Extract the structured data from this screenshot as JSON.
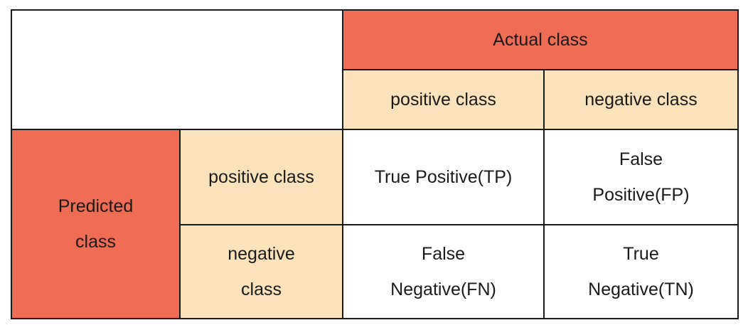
{
  "colors": {
    "header_fill": "#ef6c55",
    "subheader_fill": "#fae3ba",
    "cell_fill": "#ffffff",
    "border": "#1a1a1a"
  },
  "table": {
    "actual_header": "Actual class",
    "actual_positive": "positive class",
    "actual_negative": "negative class",
    "predicted_header": "Predicted class",
    "predicted_positive": "positive class",
    "predicted_negative": "negative class",
    "tp": "True Positive(TP)",
    "fp": "False Positive(FP)",
    "fn": "False Negative(FN)",
    "tn": "True Negative(TN)"
  }
}
